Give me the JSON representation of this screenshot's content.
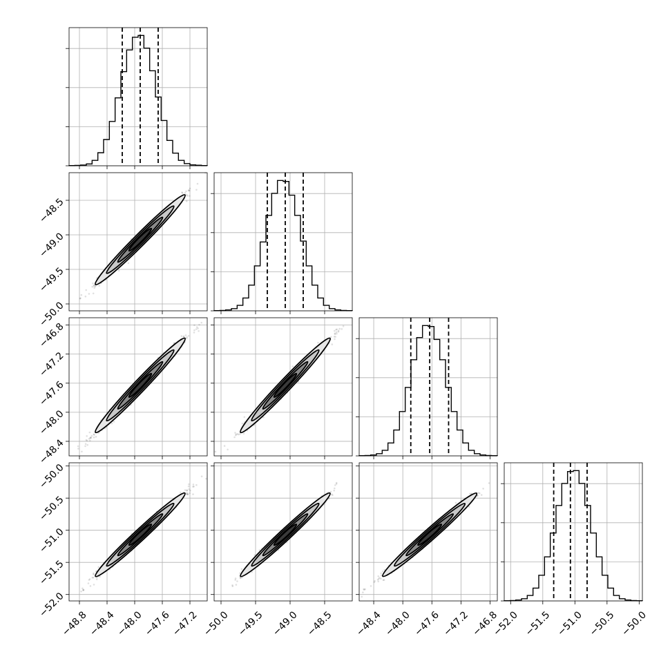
{
  "chart_data": {
    "type": "corner",
    "params": [
      {
        "mean": -47.92,
        "sd": 0.26,
        "q16": -48.18,
        "q50": -47.92,
        "q84": -47.66,
        "range": [
          -48.95,
          -46.95
        ],
        "ticks": [
          -48.8,
          -48.4,
          -48.0,
          -47.6,
          -47.2
        ],
        "ticklabels": [
          "−48.8",
          "−48.4",
          "−48.0",
          "−47.6",
          "−47.2"
        ]
      },
      {
        "mean": -49.07,
        "sd": 0.26,
        "q16": -49.33,
        "q50": -49.07,
        "q84": -48.81,
        "range": [
          -50.1,
          -48.1
        ],
        "ticks": [
          -50.0,
          -49.5,
          -49.0,
          -48.5
        ],
        "ticklabels": [
          "−50.0",
          "−49.5",
          "−49.0",
          "−48.5"
        ]
      },
      {
        "mean": -47.63,
        "sd": 0.26,
        "q16": -47.89,
        "q50": -47.63,
        "q84": -47.37,
        "range": [
          -48.6,
          -46.7
        ],
        "ticks": [
          -48.4,
          -48.0,
          -47.6,
          -47.2,
          -46.8
        ],
        "ticklabels": [
          "−48.4",
          "−48.0",
          "−47.6",
          "−47.2",
          "−46.8"
        ]
      },
      {
        "mean": -51.07,
        "sd": 0.26,
        "q16": -51.33,
        "q50": -51.07,
        "q84": -50.81,
        "range": [
          -52.1,
          -49.95
        ],
        "ticks": [
          -52.0,
          -51.5,
          -51.0,
          -50.5,
          -50.0
        ],
        "ticklabels": [
          "−52.0",
          "−51.5",
          "−51.0",
          "−50.5",
          "−50.0"
        ]
      }
    ],
    "histograms": [
      [
        1,
        2,
        4,
        10,
        30,
        72,
        145,
        245,
        375,
        520,
        640,
        710,
        720,
        650,
        525,
        380,
        250,
        140,
        70,
        30,
        12,
        5,
        3,
        1
      ],
      [
        1,
        2,
        5,
        12,
        30,
        70,
        140,
        245,
        375,
        520,
        640,
        710,
        705,
        630,
        520,
        380,
        245,
        140,
        70,
        30,
        12,
        5,
        2,
        1
      ],
      [
        1,
        2,
        5,
        12,
        30,
        70,
        140,
        240,
        370,
        520,
        640,
        705,
        700,
        630,
        520,
        370,
        240,
        140,
        70,
        30,
        12,
        5,
        2,
        1
      ],
      [
        1,
        2,
        5,
        12,
        30,
        70,
        140,
        240,
        370,
        520,
        640,
        705,
        710,
        640,
        520,
        370,
        240,
        140,
        70,
        30,
        12,
        5,
        2,
        1
      ]
    ],
    "correlation": 0.99,
    "contour_levels_sigma": [
      0.5,
      1.0,
      1.5,
      2.0
    ],
    "grid": true
  }
}
